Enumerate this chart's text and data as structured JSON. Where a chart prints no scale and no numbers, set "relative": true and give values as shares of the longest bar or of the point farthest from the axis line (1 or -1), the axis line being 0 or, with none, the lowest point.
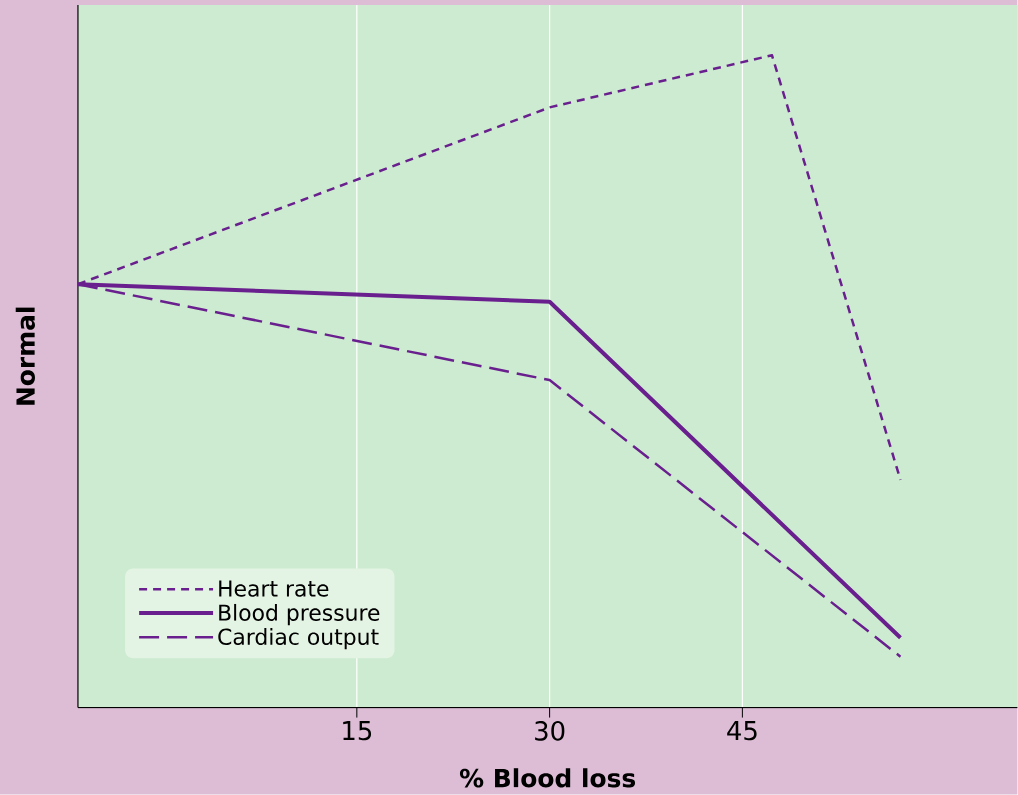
{
  "chart_data": {
    "type": "line",
    "xlabel": "% Blood loss",
    "ylabel": "Normal",
    "relative": true,
    "xlim": [
      -6.7,
      66.4
    ],
    "xticks": [
      15,
      30,
      45
    ],
    "grid": "x",
    "legend": "bottom left",
    "marker": "none",
    "series": [
      {
        "name": "Heart rate",
        "color": "#6a1f8f",
        "line_style": "dotted",
        "x": [
          -6.7,
          30,
          47.3,
          57.3
        ],
        "values": [
          0.649,
          0.92,
          1.0,
          0.349
        ]
      },
      {
        "name": "Blood pressure",
        "color": "#6a1f8f",
        "line_style": "solid",
        "x": [
          -6.7,
          30,
          57.3
        ],
        "values": [
          0.649,
          0.622,
          0.107
        ]
      },
      {
        "name": "Cardiac output",
        "color": "#6a1f8f",
        "line_style": "dashed",
        "x": [
          -6.7,
          30,
          57.3
        ],
        "values": [
          0.649,
          0.502,
          0.078
        ]
      }
    ]
  }
}
